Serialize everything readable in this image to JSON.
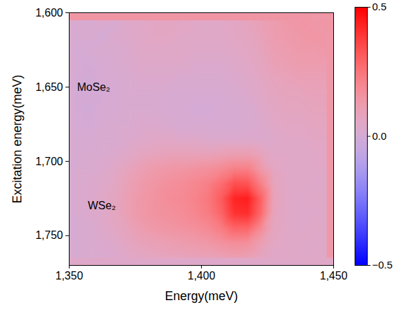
{
  "chart_data": {
    "type": "heatmap",
    "x_label": "Energy(meV)",
    "y_label": "Excitation energy(meV)",
    "xlim": [
      1350,
      1450
    ],
    "xticks": [
      1350,
      1400,
      1450
    ],
    "ylim": [
      1600,
      1770
    ],
    "yticks": [
      1600,
      1650,
      1700,
      1750
    ],
    "x": [
      1352.5,
      1357.5,
      1362.5,
      1367.5,
      1372.5,
      1377.5,
      1382.5,
      1387.5,
      1392.5,
      1397.5,
      1402.5,
      1407.5,
      1412.5,
      1417.5,
      1422.5,
      1427.5,
      1432.5,
      1437.5,
      1442.5,
      1447.5
    ],
    "y": [
      1605,
      1615,
      1625,
      1635,
      1645,
      1655,
      1665,
      1675,
      1685,
      1695,
      1705,
      1715,
      1725,
      1735,
      1745,
      1755,
      1765
    ],
    "z": [
      [
        0.02,
        0.0,
        0.03,
        0.02,
        0.04,
        0.05,
        0.06,
        0.06,
        0.06,
        0.05,
        0.05,
        0.05,
        0.06,
        0.08,
        0.1,
        0.12,
        0.14,
        0.15,
        0.14,
        0.15
      ],
      [
        0.01,
        0.02,
        0.0,
        0.03,
        0.04,
        0.05,
        0.06,
        0.06,
        0.05,
        0.05,
        0.05,
        0.05,
        0.06,
        0.07,
        0.09,
        0.12,
        0.13,
        0.14,
        0.15,
        0.14
      ],
      [
        0.0,
        0.01,
        0.02,
        0.02,
        0.03,
        0.05,
        0.05,
        0.05,
        0.05,
        0.04,
        0.04,
        0.04,
        0.05,
        0.06,
        0.08,
        0.11,
        0.12,
        0.13,
        0.13,
        0.14
      ],
      [
        0.01,
        0.0,
        0.01,
        0.02,
        0.03,
        0.04,
        0.04,
        0.04,
        0.04,
        0.03,
        0.03,
        0.03,
        0.04,
        0.05,
        0.07,
        0.1,
        0.11,
        0.12,
        0.12,
        0.12
      ],
      [
        0.0,
        -0.01,
        0.01,
        0.01,
        0.02,
        0.03,
        0.03,
        0.03,
        0.02,
        0.02,
        0.02,
        0.02,
        0.03,
        0.04,
        0.06,
        0.08,
        0.09,
        0.1,
        0.1,
        0.1
      ],
      [
        -0.01,
        0.0,
        0.0,
        0.01,
        0.02,
        0.02,
        0.02,
        0.01,
        0.01,
        0.01,
        0.01,
        0.01,
        0.02,
        0.03,
        0.05,
        0.07,
        0.08,
        0.08,
        0.09,
        0.09
      ],
      [
        0.0,
        -0.01,
        0.01,
        0.01,
        0.02,
        0.02,
        0.02,
        0.01,
        0.01,
        0.0,
        0.0,
        0.01,
        0.01,
        0.02,
        0.04,
        0.06,
        0.07,
        0.07,
        0.08,
        0.08
      ],
      [
        0.0,
        0.0,
        0.01,
        0.02,
        0.02,
        0.03,
        0.03,
        0.02,
        0.01,
        0.01,
        0.01,
        0.01,
        0.01,
        0.02,
        0.03,
        0.05,
        0.06,
        0.06,
        0.07,
        0.07
      ],
      [
        0.01,
        0.01,
        0.02,
        0.02,
        0.03,
        0.04,
        0.05,
        0.05,
        0.04,
        0.04,
        0.03,
        0.03,
        0.03,
        0.03,
        0.03,
        0.04,
        0.05,
        0.05,
        0.06,
        0.06
      ],
      [
        0.01,
        0.02,
        0.02,
        0.03,
        0.05,
        0.07,
        0.08,
        0.09,
        0.09,
        0.09,
        0.09,
        0.1,
        0.11,
        0.11,
        0.08,
        0.05,
        0.05,
        0.05,
        0.05,
        0.06
      ],
      [
        0.02,
        0.02,
        0.03,
        0.05,
        0.08,
        0.11,
        0.13,
        0.14,
        0.15,
        0.16,
        0.17,
        0.19,
        0.22,
        0.22,
        0.14,
        0.06,
        0.05,
        0.05,
        0.05,
        0.05
      ],
      [
        0.02,
        0.03,
        0.04,
        0.06,
        0.1,
        0.13,
        0.15,
        0.17,
        0.18,
        0.2,
        0.22,
        0.27,
        0.34,
        0.33,
        0.22,
        0.08,
        0.05,
        0.05,
        0.04,
        0.05
      ],
      [
        0.02,
        0.03,
        0.05,
        0.07,
        0.11,
        0.14,
        0.16,
        0.18,
        0.19,
        0.21,
        0.24,
        0.31,
        0.43,
        0.44,
        0.3,
        0.09,
        0.05,
        0.04,
        0.05,
        0.05
      ],
      [
        0.02,
        0.03,
        0.04,
        0.07,
        0.11,
        0.14,
        0.16,
        0.17,
        0.18,
        0.2,
        0.23,
        0.29,
        0.4,
        0.41,
        0.28,
        0.08,
        0.05,
        0.04,
        0.04,
        0.05
      ],
      [
        0.02,
        0.02,
        0.04,
        0.06,
        0.09,
        0.12,
        0.14,
        0.15,
        0.16,
        0.17,
        0.19,
        0.23,
        0.29,
        0.29,
        0.19,
        0.07,
        0.05,
        0.04,
        0.05,
        0.05
      ],
      [
        0.01,
        0.02,
        0.03,
        0.04,
        0.07,
        0.09,
        0.1,
        0.11,
        0.12,
        0.13,
        0.14,
        0.16,
        0.18,
        0.17,
        0.11,
        0.06,
        0.05,
        0.05,
        0.04,
        0.05
      ],
      [
        0.01,
        0.02,
        0.02,
        0.03,
        0.05,
        0.06,
        0.07,
        0.08,
        0.08,
        0.09,
        0.09,
        0.1,
        0.11,
        0.1,
        0.07,
        0.05,
        0.05,
        0.04,
        0.05,
        0.05
      ]
    ],
    "colorbar_range": [
      -0.5,
      0.5
    ],
    "colorbar_ticks": [
      -0.5,
      0,
      0.5
    ],
    "annotations": [
      {
        "text": "MoSe₂",
        "x": 1353,
        "y": 1650
      },
      {
        "text": "WSe₂",
        "x": 1357,
        "y": 1730
      }
    ]
  }
}
